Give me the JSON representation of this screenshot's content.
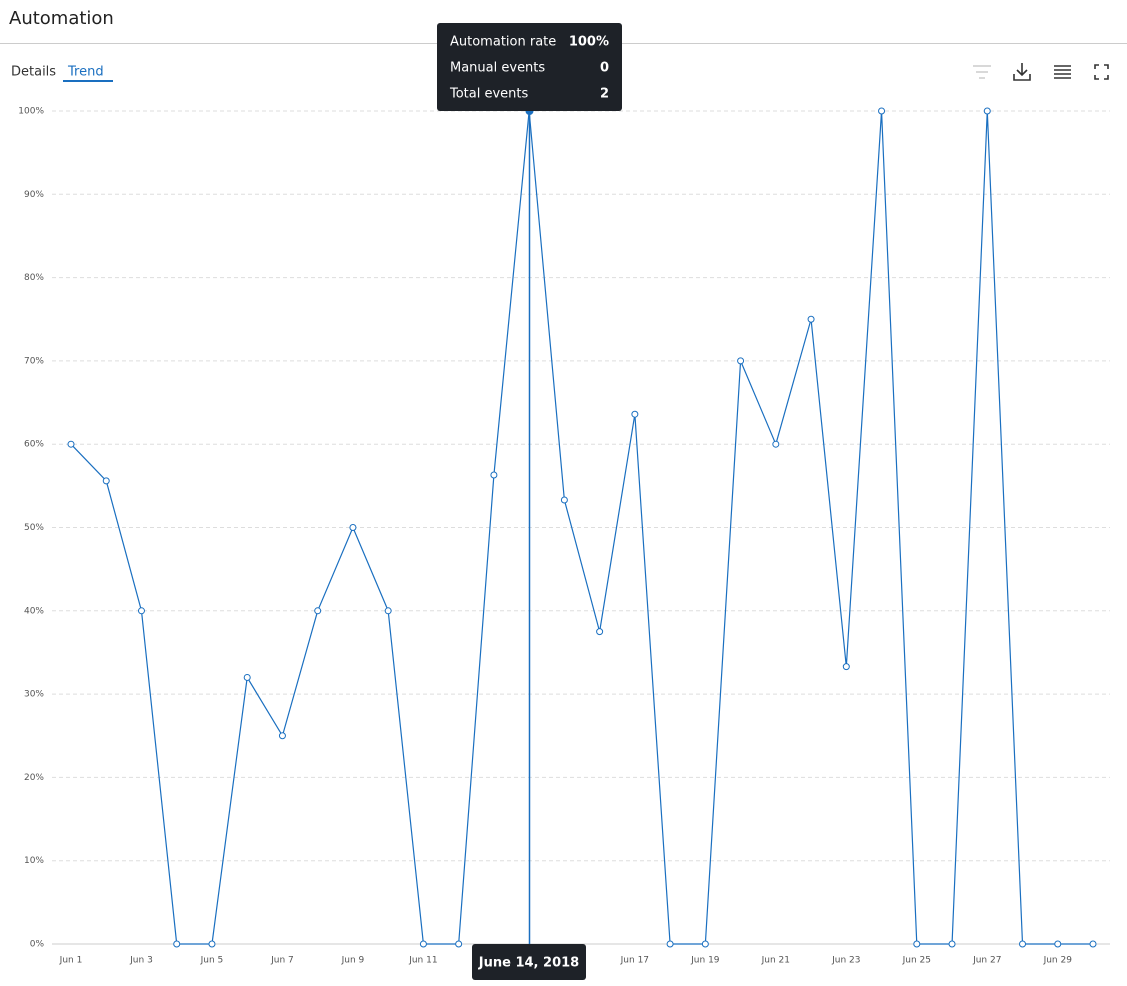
{
  "header": {
    "title": "Automation"
  },
  "tabs": [
    "Details",
    "Trend"
  ],
  "tooltip": {
    "rows": [
      {
        "label": "Automation rate",
        "value": "100%"
      },
      {
        "label": "Manual events",
        "value": "0"
      },
      {
        "label": "Total events",
        "value": "2"
      }
    ]
  },
  "hover_date": "June 14, 2018",
  "chart_data": {
    "type": "line",
    "categories": [
      "Jun 1",
      null,
      "Jun 3",
      null,
      "Jun 5",
      null,
      "Jun 7",
      null,
      "Jun 9",
      null,
      "Jun 11",
      null,
      null,
      null,
      null,
      null,
      "Jun 17",
      null,
      "Jun 19",
      null,
      "Jun 21",
      null,
      "Jun 23",
      null,
      "Jun 25",
      null,
      "Jun 27",
      null,
      "Jun 29",
      null
    ],
    "series": [
      {
        "name": "Automation rate",
        "color": "#1a6fc0",
        "values": [
          60,
          55.6,
          40,
          0,
          0,
          32,
          25,
          40,
          50,
          40,
          0,
          0,
          56.3,
          100,
          53.3,
          37.5,
          63.6,
          0,
          0,
          70,
          60,
          75,
          33.3,
          100,
          0,
          0,
          100,
          0,
          0,
          0
        ]
      }
    ],
    "ylim": [
      0,
      100
    ],
    "yticks": [
      {
        "value": 0,
        "label": "0%"
      },
      {
        "value": 10,
        "label": "10%"
      },
      {
        "value": 20,
        "label": "20%"
      },
      {
        "value": 30,
        "label": "30%"
      },
      {
        "value": 40,
        "label": "40%"
      },
      {
        "value": 50,
        "label": "50%"
      },
      {
        "value": 60,
        "label": "60%"
      },
      {
        "value": 70,
        "label": "70%"
      },
      {
        "value": 80,
        "label": "80%"
      },
      {
        "value": 90,
        "label": "90%"
      },
      {
        "value": 100,
        "label": "100%"
      }
    ],
    "grid": true
  }
}
